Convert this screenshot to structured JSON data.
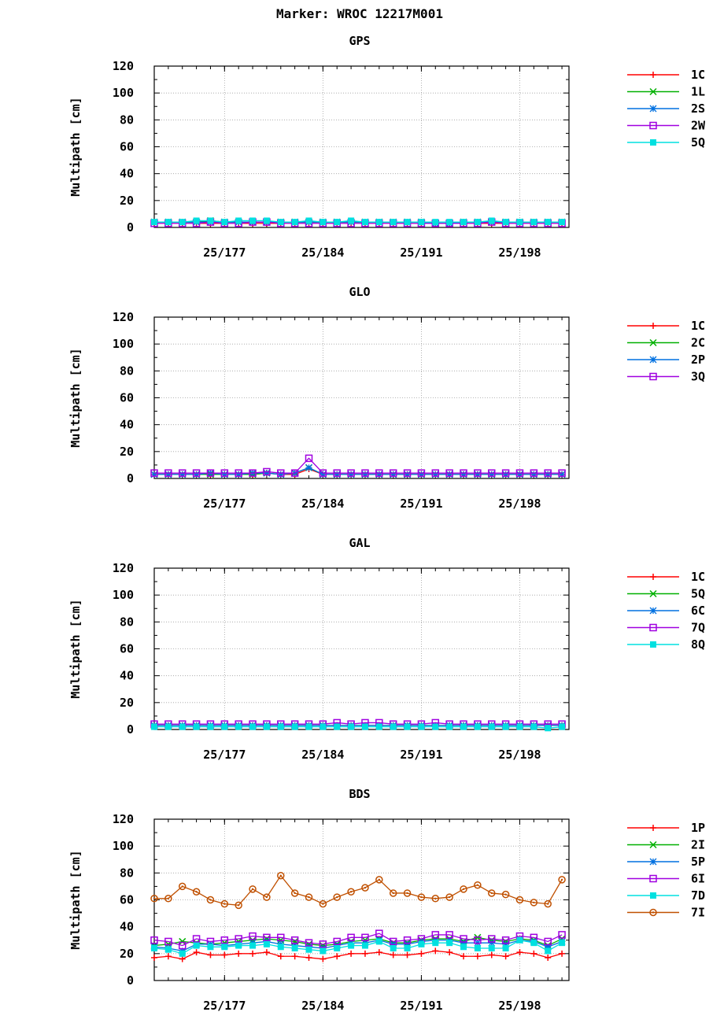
{
  "title": "Marker: WROC 12217M001",
  "colors": {
    "1C": "#ff0000",
    "1P": "#ff0000",
    "green": "#00b000",
    "blue": "#0070e0",
    "purple": "#a000e0",
    "cyan": "#00e0e0",
    "brown": "#c05000"
  },
  "chart_data": [
    {
      "type": "line",
      "title": "GPS",
      "ylabel": "Multipath [cm]",
      "xlabel": "",
      "ylim": [
        0,
        120
      ],
      "yticks": [
        0,
        20,
        40,
        60,
        80,
        100,
        120
      ],
      "xticks": [
        {
          "x": 177,
          "label": "25/177"
        },
        {
          "x": 184,
          "label": "25/184"
        },
        {
          "x": 191,
          "label": "25/191"
        },
        {
          "x": 198,
          "label": "25/198"
        }
      ],
      "xlim": [
        172,
        201.5
      ],
      "x": [
        172,
        173,
        174,
        175,
        176,
        177,
        178,
        179,
        180,
        181,
        182,
        183,
        184,
        185,
        186,
        187,
        188,
        189,
        190,
        191,
        192,
        193,
        194,
        195,
        196,
        197,
        198,
        199,
        200,
        201
      ],
      "series": [
        {
          "name": "1C",
          "color": "#ff0000",
          "marker": "plus",
          "values": [
            3,
            3,
            3,
            3,
            3,
            3,
            3,
            3,
            3,
            3,
            3,
            3,
            3,
            3,
            3,
            3,
            3,
            3,
            3,
            3,
            3,
            3,
            3,
            3,
            3,
            3,
            3,
            3,
            3,
            3
          ]
        },
        {
          "name": "1L",
          "color": "#00b000",
          "marker": "x",
          "values": [
            4,
            4,
            4,
            4,
            5,
            4,
            4,
            4,
            4,
            4,
            4,
            4,
            4,
            4,
            4,
            4,
            4,
            4,
            4,
            4,
            3,
            3,
            4,
            4,
            4,
            4,
            4,
            4,
            4,
            4
          ]
        },
        {
          "name": "2S",
          "color": "#0070e0",
          "marker": "star",
          "values": [
            4,
            4,
            4,
            4,
            4,
            4,
            4,
            4,
            4,
            4,
            4,
            4,
            4,
            4,
            4,
            4,
            4,
            4,
            4,
            4,
            3,
            3,
            4,
            4,
            4,
            4,
            4,
            4,
            4,
            4
          ]
        },
        {
          "name": "2W",
          "color": "#a000e0",
          "marker": "square",
          "values": [
            3,
            3,
            3,
            3,
            4,
            3,
            3,
            4,
            4,
            3,
            3,
            3,
            3,
            3,
            3,
            3,
            3,
            3,
            3,
            3,
            3,
            3,
            3,
            3,
            4,
            3,
            3,
            3,
            3,
            3
          ]
        },
        {
          "name": "5Q",
          "color": "#00e0e0",
          "marker": "filledsquare",
          "values": [
            4,
            4,
            4,
            5,
            5,
            4,
            5,
            5,
            5,
            4,
            4,
            5,
            4,
            4,
            5,
            4,
            4,
            4,
            4,
            4,
            4,
            4,
            4,
            4,
            5,
            4,
            4,
            4,
            4,
            4
          ]
        }
      ]
    },
    {
      "type": "line",
      "title": "GLO",
      "ylabel": "Multipath [cm]",
      "xlabel": "",
      "ylim": [
        0,
        120
      ],
      "yticks": [
        0,
        20,
        40,
        60,
        80,
        100,
        120
      ],
      "xticks": [
        {
          "x": 177,
          "label": "25/177"
        },
        {
          "x": 184,
          "label": "25/184"
        },
        {
          "x": 191,
          "label": "25/191"
        },
        {
          "x": 198,
          "label": "25/198"
        }
      ],
      "xlim": [
        172,
        201.5
      ],
      "x": [
        172,
        173,
        174,
        175,
        176,
        177,
        178,
        179,
        180,
        181,
        182,
        183,
        184,
        185,
        186,
        187,
        188,
        189,
        190,
        191,
        192,
        193,
        194,
        195,
        196,
        197,
        198,
        199,
        200,
        201
      ],
      "series": [
        {
          "name": "1C",
          "color": "#ff0000",
          "marker": "plus",
          "values": [
            3,
            3,
            3,
            3,
            3,
            3,
            3,
            3,
            4,
            3,
            3,
            7,
            3,
            3,
            3,
            3,
            3,
            3,
            3,
            3,
            3,
            3,
            3,
            3,
            3,
            3,
            3,
            3,
            3,
            3
          ]
        },
        {
          "name": "2C",
          "color": "#00b000",
          "marker": "x",
          "values": [
            3,
            3,
            3,
            3,
            3,
            3,
            3,
            3,
            4,
            3,
            4,
            8,
            3,
            3,
            3,
            3,
            3,
            3,
            3,
            3,
            3,
            3,
            3,
            3,
            3,
            3,
            3,
            3,
            3,
            3
          ]
        },
        {
          "name": "2P",
          "color": "#0070e0",
          "marker": "star",
          "values": [
            3,
            3,
            3,
            3,
            4,
            3,
            3,
            4,
            4,
            3,
            4,
            8,
            3,
            3,
            3,
            3,
            3,
            3,
            3,
            3,
            3,
            3,
            3,
            3,
            3,
            3,
            3,
            3,
            3,
            3
          ]
        },
        {
          "name": "3Q",
          "color": "#a000e0",
          "marker": "square",
          "values": [
            4,
            4,
            4,
            4,
            4,
            4,
            4,
            4,
            5,
            4,
            4,
            15,
            4,
            4,
            4,
            4,
            4,
            4,
            4,
            4,
            4,
            4,
            4,
            4,
            4,
            4,
            4,
            4,
            4,
            4
          ]
        }
      ]
    },
    {
      "type": "line",
      "title": "GAL",
      "ylabel": "Multipath [cm]",
      "xlabel": "",
      "ylim": [
        0,
        120
      ],
      "yticks": [
        0,
        20,
        40,
        60,
        80,
        100,
        120
      ],
      "xticks": [
        {
          "x": 177,
          "label": "25/177"
        },
        {
          "x": 184,
          "label": "25/184"
        },
        {
          "x": 191,
          "label": "25/191"
        },
        {
          "x": 198,
          "label": "25/198"
        }
      ],
      "xlim": [
        172,
        201.5
      ],
      "x": [
        172,
        173,
        174,
        175,
        176,
        177,
        178,
        179,
        180,
        181,
        182,
        183,
        184,
        185,
        186,
        187,
        188,
        189,
        190,
        191,
        192,
        193,
        194,
        195,
        196,
        197,
        198,
        199,
        200,
        201
      ],
      "series": [
        {
          "name": "1C",
          "color": "#ff0000",
          "marker": "plus",
          "values": [
            3,
            3,
            3,
            3,
            3,
            3,
            3,
            3,
            3,
            3,
            3,
            3,
            3,
            3,
            3,
            3,
            3,
            3,
            3,
            3,
            3,
            3,
            3,
            3,
            3,
            3,
            3,
            3,
            3,
            3
          ]
        },
        {
          "name": "5Q",
          "color": "#00b000",
          "marker": "x",
          "values": [
            3,
            3,
            3,
            3,
            3,
            3,
            3,
            3,
            3,
            3,
            3,
            3,
            3,
            3,
            3,
            3,
            3,
            3,
            3,
            3,
            3,
            3,
            3,
            3,
            3,
            3,
            3,
            3,
            3,
            3
          ]
        },
        {
          "name": "6C",
          "color": "#0070e0",
          "marker": "star",
          "values": [
            3,
            3,
            3,
            3,
            3,
            3,
            3,
            3,
            3,
            3,
            3,
            3,
            3,
            3,
            3,
            3,
            3,
            3,
            3,
            3,
            3,
            3,
            3,
            3,
            3,
            3,
            3,
            3,
            3,
            3
          ]
        },
        {
          "name": "7Q",
          "color": "#a000e0",
          "marker": "square",
          "values": [
            4,
            4,
            4,
            4,
            4,
            4,
            4,
            4,
            4,
            4,
            4,
            4,
            4,
            5,
            4,
            5,
            5,
            4,
            4,
            4,
            5,
            4,
            4,
            4,
            4,
            4,
            4,
            4,
            4,
            4
          ]
        },
        {
          "name": "8Q",
          "color": "#00e0e0",
          "marker": "filledsquare",
          "values": [
            2,
            2,
            2,
            2,
            2,
            2,
            2,
            2,
            2,
            2,
            2,
            2,
            2,
            2,
            2,
            2,
            2,
            2,
            2,
            2,
            2,
            2,
            2,
            2,
            2,
            2,
            2,
            2,
            1,
            2
          ]
        }
      ]
    },
    {
      "type": "line",
      "title": "BDS",
      "ylabel": "Multipath [cm]",
      "xlabel": "",
      "ylim": [
        0,
        120
      ],
      "yticks": [
        0,
        20,
        40,
        60,
        80,
        100,
        120
      ],
      "xticks": [
        {
          "x": 177,
          "label": "25/177"
        },
        {
          "x": 184,
          "label": "25/184"
        },
        {
          "x": 191,
          "label": "25/191"
        },
        {
          "x": 198,
          "label": "25/198"
        }
      ],
      "xlim": [
        172,
        201.5
      ],
      "x": [
        172,
        173,
        174,
        175,
        176,
        177,
        178,
        179,
        180,
        181,
        182,
        183,
        184,
        185,
        186,
        187,
        188,
        189,
        190,
        191,
        192,
        193,
        194,
        195,
        196,
        197,
        198,
        199,
        200,
        201
      ],
      "series": [
        {
          "name": "1P",
          "color": "#ff0000",
          "marker": "plus",
          "values": [
            17,
            18,
            16,
            21,
            19,
            19,
            20,
            20,
            21,
            18,
            18,
            17,
            16,
            18,
            20,
            20,
            21,
            19,
            19,
            20,
            22,
            21,
            18,
            18,
            19,
            18,
            21,
            20,
            17,
            20
          ]
        },
        {
          "name": "2I",
          "color": "#00b000",
          "marker": "x",
          "values": [
            26,
            27,
            29,
            28,
            27,
            28,
            29,
            30,
            31,
            30,
            29,
            27,
            26,
            27,
            29,
            30,
            31,
            28,
            28,
            30,
            31,
            31,
            29,
            32,
            30,
            29,
            31,
            30,
            26,
            31
          ]
        },
        {
          "name": "5P",
          "color": "#0070e0",
          "marker": "star",
          "values": [
            25,
            24,
            22,
            27,
            27,
            26,
            27,
            28,
            29,
            27,
            26,
            25,
            24,
            26,
            28,
            28,
            30,
            27,
            27,
            29,
            30,
            30,
            28,
            28,
            28,
            27,
            30,
            29,
            25,
            29
          ]
        },
        {
          "name": "6I",
          "color": "#a000e0",
          "marker": "square",
          "values": [
            30,
            29,
            26,
            31,
            29,
            30,
            31,
            33,
            32,
            32,
            30,
            28,
            27,
            29,
            32,
            32,
            35,
            29,
            30,
            31,
            34,
            34,
            31,
            30,
            31,
            30,
            33,
            32,
            29,
            34
          ]
        },
        {
          "name": "7D",
          "color": "#00e0e0",
          "marker": "filledsquare",
          "values": [
            24,
            23,
            20,
            26,
            25,
            25,
            26,
            26,
            27,
            25,
            24,
            23,
            22,
            24,
            26,
            26,
            29,
            24,
            24,
            27,
            28,
            28,
            25,
            24,
            24,
            24,
            30,
            28,
            22,
            28
          ]
        },
        {
          "name": "7I",
          "color": "#c05000",
          "marker": "circle",
          "values": [
            61,
            61,
            70,
            66,
            60,
            57,
            56,
            68,
            62,
            78,
            65,
            62,
            57,
            62,
            66,
            69,
            75,
            65,
            65,
            62,
            61,
            62,
            68,
            71,
            65,
            64,
            60,
            58,
            57,
            75
          ]
        }
      ]
    }
  ]
}
